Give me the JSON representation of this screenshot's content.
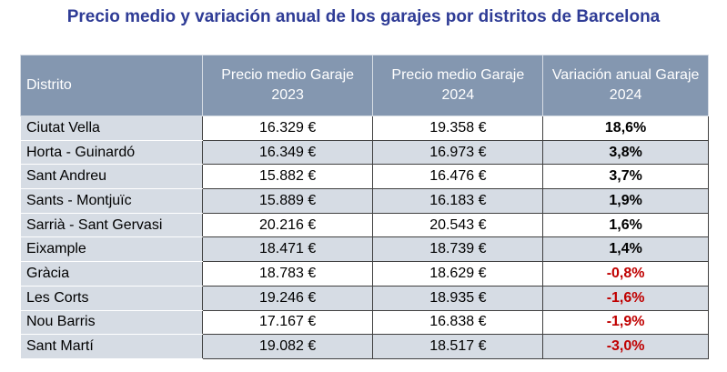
{
  "title": "Precio medio y variación anual de los garajes por distritos de Barcelona",
  "table": {
    "header": [
      "Distrito",
      "Precio medio Garaje 2023",
      "Precio medio Garaje 2024",
      "Variación anual Garaje 2024"
    ],
    "rows": [
      [
        "Ciutat Vella",
        "16.329 €",
        "19.358 €",
        "18,6%"
      ],
      [
        "Horta - Guinardó",
        "16.349 €",
        "16.973 €",
        "3,8%"
      ],
      [
        "Sant Andreu",
        "15.882 €",
        "16.476 €",
        "3,7%"
      ],
      [
        "Sants - Montjuïc",
        "15.889 €",
        "16.183 €",
        "1,9%"
      ],
      [
        "Sarrià - Sant Gervasi",
        "20.216 €",
        "20.543 €",
        "1,6%"
      ],
      [
        "Eixample",
        "18.471 €",
        "18.739 €",
        "1,4%"
      ],
      [
        "Gràcia",
        "18.783 €",
        "18.629 €",
        "-0,8%"
      ],
      [
        "Les Corts",
        "19.246 €",
        "18.935 €",
        "-1,6%"
      ],
      [
        "Nou Barris",
        "17.167 €",
        "16.838 €",
        "-1,9%"
      ],
      [
        "Sant Martí",
        "19.082 €",
        "18.517 €",
        "-3,0%"
      ]
    ]
  }
}
